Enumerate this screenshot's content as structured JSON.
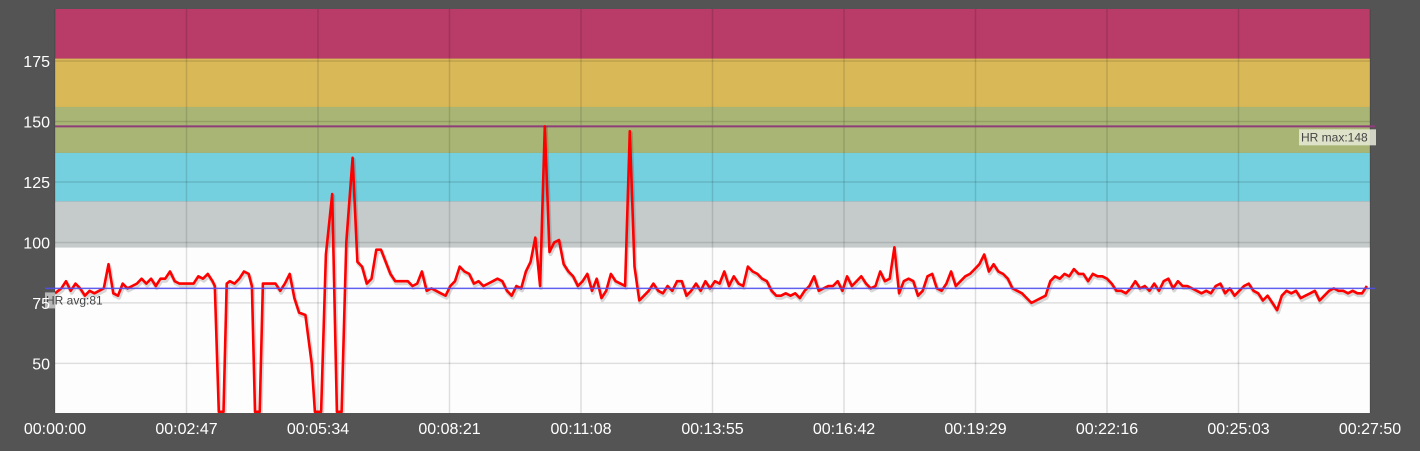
{
  "chart_data": {
    "type": "line",
    "title": "",
    "xlabel": "",
    "ylabel": "",
    "x_range_seconds": [
      0,
      1670
    ],
    "ylim": [
      29.5,
      196.5
    ],
    "grid": true,
    "legend": "none",
    "x_tick_labels": [
      "00:00:00",
      "00:02:47",
      "00:05:34",
      "00:08:21",
      "00:11:08",
      "00:13:55",
      "00:16:42",
      "00:19:29",
      "00:22:16",
      "00:25:03",
      "00:27:50"
    ],
    "x_tick_seconds": [
      0,
      167,
      334,
      501,
      668,
      835,
      1002,
      1169,
      1336,
      1503,
      1670
    ],
    "y_tick_labels": [
      "50",
      "75",
      "100",
      "125",
      "150",
      "175"
    ],
    "y_ticks": [
      50,
      75,
      100,
      125,
      150,
      175
    ],
    "zones": [
      {
        "name": "zone-5",
        "from": 176,
        "to": 196.5,
        "color": "#b83b68"
      },
      {
        "name": "zone-4",
        "from": 156,
        "to": 176,
        "color": "#d8b857"
      },
      {
        "name": "zone-3",
        "from": 137,
        "to": 156,
        "color": "#a8b574"
      },
      {
        "name": "zone-2",
        "from": 117,
        "to": 137,
        "color": "#74d0de"
      },
      {
        "name": "zone-1",
        "from": 98,
        "to": 117,
        "color": "#c5cbcb"
      },
      {
        "name": "zone-0",
        "from": 29.5,
        "to": 98,
        "color": "#fdfdfd"
      }
    ],
    "reference_lines": [
      {
        "label": "HR max:148",
        "value": 148,
        "color": "#8e3c7a"
      },
      {
        "label": "HR avg:81",
        "value": 81,
        "color": "#5050ee"
      }
    ],
    "series": [
      {
        "name": "HR",
        "color": "#ff0000",
        "points": [
          [
            0,
            79
          ],
          [
            8,
            81
          ],
          [
            14,
            84
          ],
          [
            20,
            80
          ],
          [
            26,
            83
          ],
          [
            32,
            81
          ],
          [
            38,
            78
          ],
          [
            44,
            80
          ],
          [
            50,
            79
          ],
          [
            56,
            80
          ],
          [
            62,
            81
          ],
          [
            68,
            91
          ],
          [
            74,
            79
          ],
          [
            80,
            78
          ],
          [
            86,
            83
          ],
          [
            92,
            81
          ],
          [
            98,
            82
          ],
          [
            104,
            83
          ],
          [
            110,
            85
          ],
          [
            116,
            83
          ],
          [
            122,
            85
          ],
          [
            128,
            82
          ],
          [
            134,
            85
          ],
          [
            140,
            85
          ],
          [
            146,
            88
          ],
          [
            152,
            84
          ],
          [
            158,
            83
          ],
          [
            164,
            83
          ],
          [
            170,
            83
          ],
          [
            176,
            83
          ],
          [
            182,
            86
          ],
          [
            188,
            85
          ],
          [
            194,
            87
          ],
          [
            200,
            84
          ],
          [
            203,
            82
          ],
          [
            208,
            30
          ],
          [
            214,
            30
          ],
          [
            218,
            83
          ],
          [
            222,
            84
          ],
          [
            228,
            83
          ],
          [
            234,
            85
          ],
          [
            240,
            88
          ],
          [
            246,
            87
          ],
          [
            250,
            82
          ],
          [
            254,
            30
          ],
          [
            260,
            30
          ],
          [
            264,
            83
          ],
          [
            272,
            83
          ],
          [
            280,
            83
          ],
          [
            286,
            80
          ],
          [
            292,
            83
          ],
          [
            298,
            87
          ],
          [
            304,
            77
          ],
          [
            310,
            71
          ],
          [
            318,
            70
          ],
          [
            326,
            50
          ],
          [
            330,
            30
          ],
          [
            338,
            30
          ],
          [
            344,
            95
          ],
          [
            352,
            120
          ],
          [
            358,
            30
          ],
          [
            364,
            30
          ],
          [
            370,
            100
          ],
          [
            378,
            135
          ],
          [
            384,
            92
          ],
          [
            390,
            90
          ],
          [
            396,
            83
          ],
          [
            402,
            85
          ],
          [
            408,
            97
          ],
          [
            414,
            97
          ],
          [
            420,
            92
          ],
          [
            426,
            87
          ],
          [
            432,
            84
          ],
          [
            440,
            84
          ],
          [
            448,
            84
          ],
          [
            454,
            82
          ],
          [
            460,
            83
          ],
          [
            466,
            88
          ],
          [
            472,
            80
          ],
          [
            478,
            81
          ],
          [
            484,
            80
          ],
          [
            490,
            79
          ],
          [
            496,
            78
          ],
          [
            502,
            82
          ],
          [
            508,
            84
          ],
          [
            514,
            90
          ],
          [
            520,
            88
          ],
          [
            526,
            87
          ],
          [
            532,
            83
          ],
          [
            538,
            84
          ],
          [
            544,
            82
          ],
          [
            550,
            83
          ],
          [
            556,
            84
          ],
          [
            562,
            85
          ],
          [
            568,
            84
          ],
          [
            574,
            80
          ],
          [
            580,
            78
          ],
          [
            586,
            82
          ],
          [
            592,
            81
          ],
          [
            598,
            88
          ],
          [
            604,
            92
          ],
          [
            610,
            102
          ],
          [
            616,
            82
          ],
          [
            622,
            148
          ],
          [
            628,
            96
          ],
          [
            634,
            100
          ],
          [
            640,
            101
          ],
          [
            646,
            91
          ],
          [
            652,
            88
          ],
          [
            658,
            86
          ],
          [
            664,
            82
          ],
          [
            670,
            84
          ],
          [
            676,
            87
          ],
          [
            682,
            80
          ],
          [
            688,
            85
          ],
          [
            694,
            77
          ],
          [
            700,
            80
          ],
          [
            706,
            87
          ],
          [
            712,
            84
          ],
          [
            718,
            83
          ],
          [
            724,
            82
          ],
          [
            730,
            146
          ],
          [
            736,
            90
          ],
          [
            742,
            76
          ],
          [
            748,
            78
          ],
          [
            754,
            80
          ],
          [
            760,
            83
          ],
          [
            766,
            80
          ],
          [
            772,
            79
          ],
          [
            778,
            82
          ],
          [
            784,
            80
          ],
          [
            790,
            84
          ],
          [
            796,
            84
          ],
          [
            802,
            78
          ],
          [
            808,
            80
          ],
          [
            814,
            83
          ],
          [
            820,
            80
          ],
          [
            826,
            84
          ],
          [
            832,
            81
          ],
          [
            838,
            84
          ],
          [
            844,
            83
          ],
          [
            850,
            88
          ],
          [
            856,
            82
          ],
          [
            862,
            86
          ],
          [
            868,
            83
          ],
          [
            874,
            82
          ],
          [
            880,
            90
          ],
          [
            886,
            88
          ],
          [
            892,
            87
          ],
          [
            898,
            85
          ],
          [
            904,
            84
          ],
          [
            910,
            80
          ],
          [
            916,
            78
          ],
          [
            922,
            78
          ],
          [
            928,
            79
          ],
          [
            934,
            78
          ],
          [
            940,
            79
          ],
          [
            946,
            77
          ],
          [
            952,
            80
          ],
          [
            958,
            82
          ],
          [
            964,
            86
          ],
          [
            970,
            80
          ],
          [
            976,
            81
          ],
          [
            982,
            82
          ],
          [
            988,
            82
          ],
          [
            994,
            84
          ],
          [
            1000,
            80
          ],
          [
            1006,
            86
          ],
          [
            1012,
            82
          ],
          [
            1018,
            84
          ],
          [
            1024,
            86
          ],
          [
            1030,
            83
          ],
          [
            1036,
            81
          ],
          [
            1042,
            82
          ],
          [
            1048,
            88
          ],
          [
            1054,
            84
          ],
          [
            1060,
            85
          ],
          [
            1066,
            98
          ],
          [
            1072,
            79
          ],
          [
            1078,
            84
          ],
          [
            1084,
            85
          ],
          [
            1090,
            84
          ],
          [
            1096,
            78
          ],
          [
            1102,
            80
          ],
          [
            1108,
            86
          ],
          [
            1114,
            87
          ],
          [
            1120,
            81
          ],
          [
            1126,
            80
          ],
          [
            1132,
            83
          ],
          [
            1138,
            88
          ],
          [
            1144,
            82
          ],
          [
            1150,
            84
          ],
          [
            1156,
            86
          ],
          [
            1162,
            87
          ],
          [
            1168,
            89
          ],
          [
            1174,
            91
          ],
          [
            1180,
            95
          ],
          [
            1186,
            88
          ],
          [
            1192,
            91
          ],
          [
            1198,
            88
          ],
          [
            1204,
            87
          ],
          [
            1210,
            85
          ],
          [
            1216,
            81
          ],
          [
            1222,
            80
          ],
          [
            1228,
            79
          ],
          [
            1234,
            77
          ],
          [
            1240,
            75
          ],
          [
            1246,
            76
          ],
          [
            1252,
            77
          ],
          [
            1258,
            78
          ],
          [
            1264,
            84
          ],
          [
            1270,
            86
          ],
          [
            1276,
            85
          ],
          [
            1282,
            87
          ],
          [
            1288,
            86
          ],
          [
            1294,
            89
          ],
          [
            1300,
            87
          ],
          [
            1306,
            87
          ],
          [
            1312,
            84
          ],
          [
            1318,
            87
          ],
          [
            1324,
            86
          ],
          [
            1330,
            86
          ],
          [
            1336,
            85
          ],
          [
            1342,
            83
          ],
          [
            1348,
            80
          ],
          [
            1354,
            80
          ],
          [
            1360,
            79
          ],
          [
            1366,
            81
          ],
          [
            1372,
            84
          ],
          [
            1378,
            81
          ],
          [
            1384,
            82
          ],
          [
            1390,
            80
          ],
          [
            1396,
            83
          ],
          [
            1402,
            80
          ],
          [
            1408,
            84
          ],
          [
            1414,
            85
          ],
          [
            1420,
            81
          ],
          [
            1426,
            84
          ],
          [
            1432,
            82
          ],
          [
            1438,
            82
          ],
          [
            1444,
            81
          ],
          [
            1450,
            80
          ],
          [
            1456,
            79
          ],
          [
            1462,
            80
          ],
          [
            1468,
            79
          ],
          [
            1474,
            82
          ],
          [
            1480,
            83
          ],
          [
            1486,
            79
          ],
          [
            1492,
            81
          ],
          [
            1498,
            78
          ],
          [
            1504,
            80
          ],
          [
            1510,
            82
          ],
          [
            1516,
            83
          ],
          [
            1522,
            80
          ],
          [
            1528,
            79
          ],
          [
            1534,
            76
          ],
          [
            1540,
            78
          ],
          [
            1546,
            75
          ],
          [
            1552,
            72
          ],
          [
            1558,
            78
          ],
          [
            1564,
            80
          ],
          [
            1570,
            79
          ],
          [
            1576,
            80
          ],
          [
            1582,
            77
          ],
          [
            1588,
            78
          ],
          [
            1594,
            79
          ],
          [
            1600,
            80
          ],
          [
            1606,
            76
          ],
          [
            1612,
            78
          ],
          [
            1618,
            80
          ],
          [
            1624,
            81
          ],
          [
            1630,
            80
          ],
          [
            1636,
            80
          ],
          [
            1642,
            79
          ],
          [
            1648,
            80
          ],
          [
            1654,
            79
          ],
          [
            1660,
            79
          ],
          [
            1666,
            82
          ]
        ]
      }
    ]
  },
  "labels": {
    "hr_max": "HR max:148",
    "hr_avg": "HR avg:81"
  }
}
